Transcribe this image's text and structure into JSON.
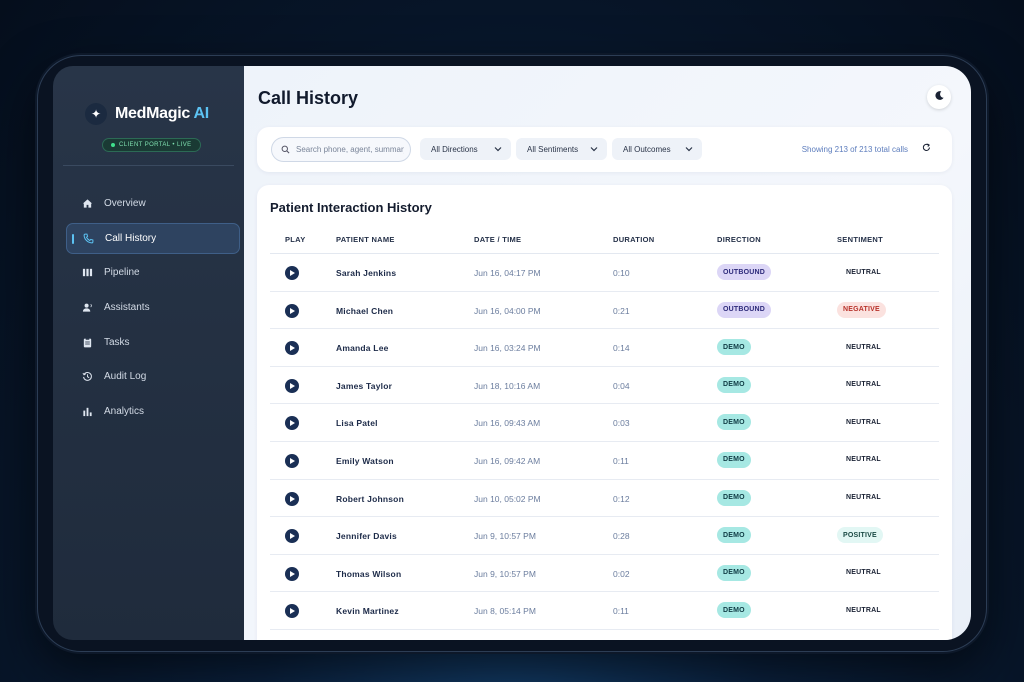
{
  "brand": {
    "name": "MedMagic",
    "suffix": "AI",
    "badge": "CLIENT PORTAL • LIVE"
  },
  "sidebar": {
    "items": [
      {
        "label": "Overview",
        "icon": "home-icon"
      },
      {
        "label": "Call History",
        "icon": "phone-icon",
        "active": true
      },
      {
        "label": "Pipeline",
        "icon": "pipeline-icon"
      },
      {
        "label": "Assistants",
        "icon": "assistant-icon"
      },
      {
        "label": "Tasks",
        "icon": "clipboard-icon"
      },
      {
        "label": "Audit Log",
        "icon": "history-icon"
      },
      {
        "label": "Analytics",
        "icon": "bar-chart-icon"
      }
    ]
  },
  "header": {
    "title": "Call History",
    "theme_icon": "moon-icon"
  },
  "filters": {
    "search_placeholder": "Search phone, agent, summary",
    "direction": "All Directions",
    "sentiment": "All Sentiments",
    "outcome": "All Outcomes",
    "showing": "Showing 213 of 213 total calls"
  },
  "table": {
    "title": "Patient Interaction History",
    "columns": [
      "PLAY",
      "PATIENT NAME",
      "DATE / TIME",
      "DURATION",
      "DIRECTION",
      "SENTIMENT"
    ],
    "rows": [
      {
        "name": "Sarah Jenkins",
        "date": "Jun 16, 04:17 PM",
        "duration": "0:10",
        "direction": "OUTBOUND",
        "sentiment": "NEUTRAL"
      },
      {
        "name": "Michael Chen",
        "date": "Jun 16, 04:00 PM",
        "duration": "0:21",
        "direction": "OUTBOUND",
        "sentiment": "NEGATIVE"
      },
      {
        "name": "Amanda Lee",
        "date": "Jun 16, 03:24 PM",
        "duration": "0:14",
        "direction": "DEMO",
        "sentiment": "NEUTRAL"
      },
      {
        "name": "James Taylor",
        "date": "Jun 18, 10:16 AM",
        "duration": "0:04",
        "direction": "DEMO",
        "sentiment": "NEUTRAL"
      },
      {
        "name": "Lisa Patel",
        "date": "Jun 16, 09:43 AM",
        "duration": "0:03",
        "direction": "DEMO",
        "sentiment": "NEUTRAL"
      },
      {
        "name": "Emily Watson",
        "date": "Jun 16, 09:42 AM",
        "duration": "0:11",
        "direction": "DEMO",
        "sentiment": "NEUTRAL"
      },
      {
        "name": "Robert Johnson",
        "date": "Jun 10, 05:02 PM",
        "duration": "0:12",
        "direction": "DEMO",
        "sentiment": "NEUTRAL"
      },
      {
        "name": "Jennifer Davis",
        "date": "Jun 9, 10:57 PM",
        "duration": "0:28",
        "direction": "DEMO",
        "sentiment": "POSITIVE"
      },
      {
        "name": "Thomas Wilson",
        "date": "Jun 9, 10:57 PM",
        "duration": "0:02",
        "direction": "DEMO",
        "sentiment": "NEUTRAL"
      },
      {
        "name": "Kevin Martinez",
        "date": "Jun 8, 05:14 PM",
        "duration": "0:11",
        "direction": "DEMO",
        "sentiment": "NEUTRAL"
      }
    ]
  },
  "colors": {
    "accent": "#5cc2f2",
    "sidebar_bg": "#283548",
    "outbound_pill": "#dcd6f6",
    "demo_pill": "#a6e8e3",
    "negative_pill": "#fbe2df",
    "positive_pill": "#e2f7f4"
  }
}
